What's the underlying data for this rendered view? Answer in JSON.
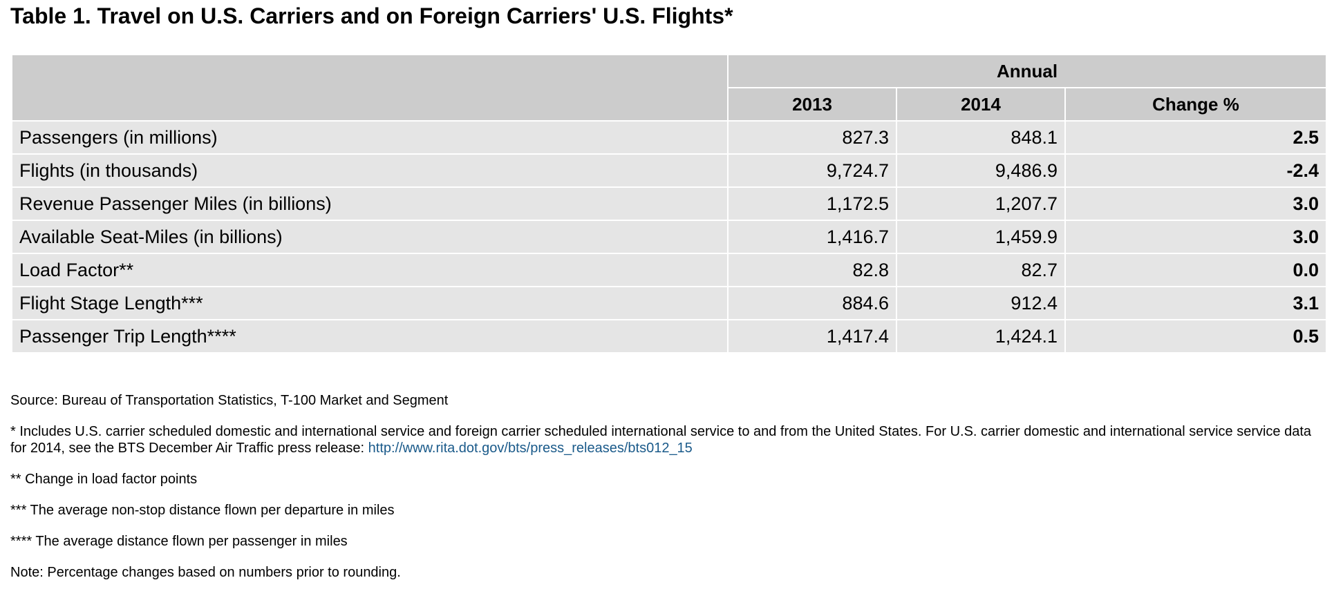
{
  "title": "Table 1. Travel on U.S. Carriers and on Foreign Carriers' U.S. Flights*",
  "table": {
    "group_header": "Annual",
    "columns": [
      "",
      "2013",
      "2014",
      "Change %"
    ],
    "rows": [
      {
        "label": "Passengers (in millions)",
        "y2013": "827.3",
        "y2014": "848.1",
        "change": "2.5"
      },
      {
        "label": "Flights (in thousands)",
        "y2013": "9,724.7",
        "y2014": "9,486.9",
        "change": "-2.4"
      },
      {
        "label": "Revenue Passenger Miles (in billions)",
        "y2013": "1,172.5",
        "y2014": "1,207.7",
        "change": "3.0"
      },
      {
        "label": "Available Seat-Miles (in billions)",
        "y2013": "1,416.7",
        "y2014": "1,459.9",
        "change": "3.0"
      },
      {
        "label": "Load Factor**",
        "y2013": "82.8",
        "y2014": "82.7",
        "change": "0.0"
      },
      {
        "label": "Flight Stage Length***",
        "y2013": "884.6",
        "y2014": "912.4",
        "change": "3.1"
      },
      {
        "label": "Passenger Trip Length****",
        "y2013": "1,417.4",
        "y2014": "1,424.1",
        "change": "0.5"
      }
    ]
  },
  "notes": {
    "source": "Source: Bureau of Transportation Statistics, T-100 Market and Segment",
    "footnote1": "* Includes U.S. carrier scheduled domestic and international service and foreign carrier scheduled international service to and from the United States. For U.S. carrier domestic and international service service data for 2014, see the BTS December Air Traffic press release: ",
    "footnote1_link": "http://www.rita.dot.gov/bts/press_releases/bts012_15",
    "footnote2": "** Change in load factor points",
    "footnote3": "*** The average non-stop distance flown per departure in miles",
    "footnote4": "**** The average distance flown per passenger in miles",
    "note": "Note: Percentage changes based on numbers prior to rounding."
  },
  "colors": {
    "header_bg": "#cccccc",
    "row_bg": "#e5e5e5",
    "link": "#1a5a8a"
  }
}
